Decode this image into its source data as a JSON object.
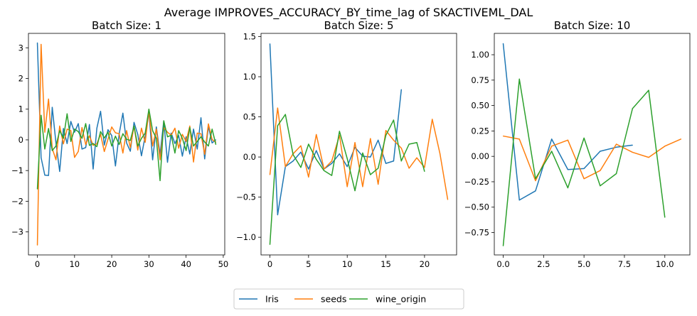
{
  "figure": {
    "suptitle": "Average IMPROVES_ACCURACY_BY_time_lag of SKACTIVEML_DAL"
  },
  "legend": {
    "entries": [
      {
        "label": "Iris",
        "color": "#1f77b4"
      },
      {
        "label": "seeds",
        "color": "#ff7f0e"
      },
      {
        "label": "wine_origin",
        "color": "#2ca02c"
      }
    ],
    "placement": "bottom-center"
  },
  "chart_data": [
    {
      "type": "line",
      "title": "Batch Size: 1",
      "xlabel": "",
      "ylabel": "",
      "xlim": [
        -2.4,
        50.4
      ],
      "ylim": [
        -3.75,
        3.47
      ],
      "xticks": [
        0,
        10,
        20,
        30,
        40,
        50
      ],
      "xtick_labels": [
        "0",
        "10",
        "20",
        "30",
        "40",
        "50"
      ],
      "yticks": [
        -3,
        -2,
        -1,
        0,
        1,
        2,
        3
      ],
      "ytick_labels": [
        "−3",
        "−2",
        "−1",
        "0",
        "1",
        "2",
        "3"
      ],
      "grid": false,
      "series": [
        {
          "name": "Iris",
          "color": "#1f77b4",
          "x": [
            0,
            1,
            2,
            3,
            4,
            5,
            6,
            7,
            8,
            9,
            10,
            11,
            12,
            13,
            14,
            15,
            16,
            17,
            18,
            19,
            20,
            21,
            22,
            23,
            24,
            25,
            26,
            27,
            28,
            29,
            30,
            31,
            32,
            33,
            34,
            35,
            36,
            37,
            38,
            39,
            40,
            41,
            42,
            43,
            44,
            45,
            46,
            47,
            48
          ],
          "y": [
            3.16,
            -0.58,
            -1.15,
            -1.16,
            1.06,
            -0.1,
            -1.03,
            0.37,
            -0.12,
            0.6,
            0.25,
            0.53,
            -0.3,
            -0.25,
            0.5,
            -0.95,
            0.38,
            0.93,
            -0.17,
            0.33,
            0.14,
            -0.85,
            0.19,
            0.87,
            -0.1,
            -0.37,
            0.57,
            0.18,
            -0.52,
            0.12,
            0.92,
            -0.65,
            0.42,
            -0.48,
            0.62,
            -0.73,
            0.22,
            -0.12,
            0.14,
            -0.53,
            0.1,
            -0.46,
            0.35,
            -0.3,
            0.72,
            -0.62,
            0.44,
            -0.1,
            0.0
          ]
        },
        {
          "name": "seeds",
          "color": "#ff7f0e",
          "x": [
            0,
            1,
            2,
            3,
            4,
            5,
            6,
            7,
            8,
            9,
            10,
            11,
            12,
            13,
            14,
            15,
            16,
            17,
            18,
            19,
            20,
            21,
            22,
            23,
            24,
            25,
            26,
            27,
            28,
            29,
            30,
            31,
            32,
            33,
            34,
            35,
            36,
            37,
            38,
            39,
            40,
            41,
            42,
            43,
            44,
            45,
            46,
            47,
            48
          ],
          "y": [
            -3.43,
            3.11,
            0.25,
            1.33,
            -0.28,
            -0.65,
            0.45,
            -0.13,
            0.35,
            0.3,
            -0.57,
            -0.38,
            0.4,
            -0.15,
            0.13,
            -0.18,
            -0.13,
            0.18,
            -0.38,
            0.02,
            0.42,
            0.23,
            0.2,
            -0.43,
            0.3,
            -0.25,
            0.45,
            -0.33,
            0.38,
            -0.08,
            0.95,
            -0.2,
            0.35,
            -0.65,
            0.4,
            0.25,
            0.15,
            0.38,
            -0.27,
            0.18,
            -0.05,
            0.45,
            -0.72,
            0.22,
            0.2,
            -0.47,
            0.52,
            0.01,
            -0.07
          ]
        },
        {
          "name": "wine_origin",
          "color": "#2ca02c",
          "x": [
            0,
            1,
            2,
            3,
            4,
            5,
            6,
            7,
            8,
            9,
            10,
            11,
            12,
            13,
            14,
            15,
            16,
            17,
            18,
            19,
            20,
            21,
            22,
            23,
            24,
            25,
            26,
            27,
            28,
            29,
            30,
            31,
            32,
            33,
            34,
            35,
            36,
            37,
            38,
            39,
            40,
            41,
            42,
            43,
            44,
            45,
            46,
            47,
            48
          ],
          "y": [
            -1.6,
            0.8,
            -0.3,
            0.37,
            -0.35,
            -0.2,
            0.3,
            0.05,
            0.85,
            -0.05,
            0.35,
            0.27,
            0.05,
            0.53,
            -0.18,
            -0.12,
            -0.22,
            0.27,
            0.06,
            0.25,
            -0.2,
            0.12,
            -0.15,
            0.2,
            0.02,
            -0.02,
            0.45,
            -0.2,
            0.05,
            0.22,
            1.0,
            0.3,
            0.05,
            -1.33,
            0.62,
            0.1,
            0.15,
            -0.43,
            0.3,
            0.05,
            -0.35,
            0.4,
            -0.2,
            -0.05,
            0.1,
            -0.07,
            -0.2,
            0.35,
            -0.15
          ]
        }
      ]
    },
    {
      "type": "line",
      "title": "Batch Size: 5",
      "xlabel": "",
      "ylabel": "",
      "xlim": [
        -1.15,
        24.15
      ],
      "ylim": [
        -1.22,
        1.54
      ],
      "xticks": [
        0,
        5,
        10,
        15,
        20
      ],
      "xtick_labels": [
        "0",
        "5",
        "10",
        "15",
        "20"
      ],
      "yticks": [
        -1.0,
        -0.5,
        0.0,
        0.5,
        1.0,
        1.5
      ],
      "ytick_labels": [
        "−1.0",
        "−0.5",
        "0.0",
        "0.5",
        "1.0",
        "1.5"
      ],
      "grid": false,
      "series": [
        {
          "name": "Iris",
          "color": "#1f77b4",
          "x": [
            0,
            1,
            2,
            3,
            4,
            5,
            6,
            7,
            8,
            9,
            10,
            11,
            12,
            13,
            14,
            15,
            16,
            17
          ],
          "y": [
            1.41,
            -0.72,
            -0.12,
            -0.05,
            0.06,
            -0.15,
            0.08,
            -0.15,
            -0.08,
            0.04,
            -0.12,
            0.12,
            0.01,
            0.0,
            0.21,
            -0.08,
            -0.05,
            0.84
          ]
        },
        {
          "name": "seeds",
          "color": "#ff7f0e",
          "x": [
            0,
            1,
            2,
            3,
            4,
            5,
            6,
            7,
            8,
            9,
            10,
            11,
            12,
            13,
            14,
            15,
            16,
            17,
            18,
            19,
            20,
            21,
            22,
            23
          ],
          "y": [
            -0.22,
            0.61,
            -0.12,
            0.04,
            0.14,
            -0.25,
            0.28,
            -0.15,
            -0.05,
            0.27,
            -0.37,
            0.18,
            -0.37,
            0.23,
            -0.34,
            0.33,
            0.21,
            0.11,
            -0.14,
            -0.01,
            -0.13,
            0.47,
            0.04,
            -0.53
          ]
        },
        {
          "name": "wine_origin",
          "color": "#2ca02c",
          "x": [
            0,
            1,
            2,
            3,
            4,
            5,
            6,
            7,
            8,
            9,
            10,
            11,
            12,
            13,
            14,
            15,
            16,
            17,
            18,
            19,
            20
          ],
          "y": [
            -1.09,
            0.39,
            0.53,
            0.03,
            -0.13,
            0.16,
            -0.03,
            -0.17,
            -0.23,
            0.32,
            -0.02,
            -0.42,
            0.05,
            -0.22,
            -0.14,
            0.27,
            0.46,
            -0.05,
            0.16,
            0.18,
            -0.18
          ]
        }
      ]
    },
    {
      "type": "line",
      "title": "Batch Size: 10",
      "xlabel": "",
      "ylabel": "",
      "xlim": [
        -0.55,
        11.55
      ],
      "ylim": [
        -0.97,
        1.21
      ],
      "xticks": [
        0.0,
        2.5,
        5.0,
        7.5,
        10.0
      ],
      "xtick_labels": [
        "0.0",
        "2.5",
        "5.0",
        "7.5",
        "10.0"
      ],
      "yticks": [
        -0.75,
        -0.5,
        -0.25,
        0.0,
        0.25,
        0.5,
        0.75,
        1.0
      ],
      "ytick_labels": [
        "−0.75",
        "−0.50",
        "−0.25",
        "0.00",
        "0.25",
        "0.50",
        "0.75",
        "1.00"
      ],
      "grid": false,
      "series": [
        {
          "name": "Iris",
          "color": "#1f77b4",
          "x": [
            0,
            1,
            2,
            3,
            4,
            5,
            6,
            7,
            8
          ],
          "y": [
            1.11,
            -0.43,
            -0.34,
            0.17,
            -0.13,
            -0.12,
            0.05,
            0.09,
            0.11
          ]
        },
        {
          "name": "seeds",
          "color": "#ff7f0e",
          "x": [
            0,
            1,
            2,
            3,
            4,
            5,
            6,
            7,
            8,
            9,
            10,
            11
          ],
          "y": [
            0.2,
            0.17,
            -0.24,
            0.1,
            0.16,
            -0.22,
            -0.14,
            0.12,
            0.04,
            -0.01,
            0.1,
            0.17
          ]
        },
        {
          "name": "wine_origin",
          "color": "#2ca02c",
          "x": [
            0,
            1,
            2,
            3,
            4,
            5,
            6,
            7,
            8,
            9,
            10
          ],
          "y": [
            -0.88,
            0.76,
            -0.22,
            0.05,
            -0.31,
            0.18,
            -0.29,
            -0.17,
            0.47,
            0.65,
            -0.6
          ]
        }
      ]
    }
  ]
}
